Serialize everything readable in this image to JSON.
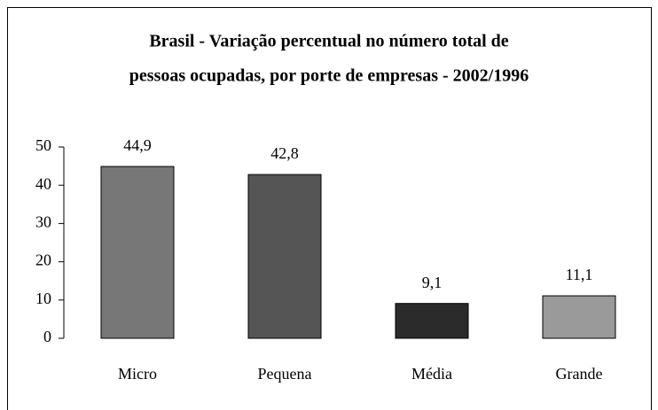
{
  "chart_data": {
    "type": "bar",
    "title": [
      "Brasil - Variação percentual no número total de",
      "pessoas ocupadas, por porte de empresas - 2002/1996"
    ],
    "categories": [
      "Micro",
      "Pequena",
      "Média",
      "Grande"
    ],
    "values": [
      44.9,
      42.8,
      9.1,
      11.1
    ],
    "value_labels": [
      "44,9",
      "42,8",
      "9,1",
      "11,1"
    ],
    "colors": [
      "#777777",
      "#555555",
      "#2b2b2b",
      "#9a9a9a"
    ],
    "ylim": [
      0,
      50
    ],
    "yticks": [
      0,
      10,
      20,
      30,
      40,
      50
    ],
    "grid": false
  }
}
